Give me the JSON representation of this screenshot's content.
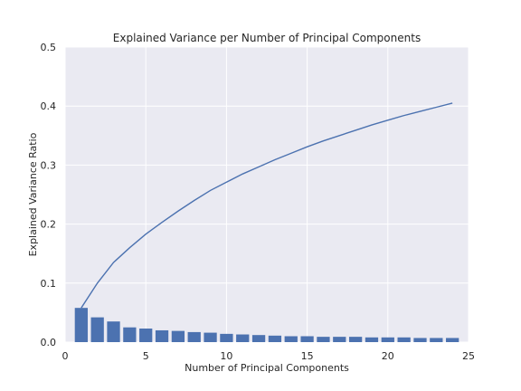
{
  "chart_data": {
    "type": "bar",
    "title": "Explained Variance per Number of Principal Components",
    "xlabel": "Number of Principal Components",
    "ylabel": "Explained Variance Ratio",
    "xlim": [
      0,
      25
    ],
    "ylim": [
      0,
      0.5
    ],
    "x_ticks": [
      0,
      5,
      10,
      15,
      20,
      25
    ],
    "y_ticks": [
      0.0,
      0.1,
      0.2,
      0.3,
      0.4,
      0.5
    ],
    "x_tick_labels": [
      "0",
      "5",
      "10",
      "15",
      "20",
      "25"
    ],
    "y_tick_labels": [
      "0.0",
      "0.1",
      "0.2",
      "0.3",
      "0.4",
      "0.5"
    ],
    "grid": true,
    "background_color": "#eaeaf2",
    "series": [
      {
        "type": "bar",
        "color": "#4c72b0",
        "x": [
          1,
          2,
          3,
          4,
          5,
          6,
          7,
          8,
          9,
          10,
          11,
          12,
          13,
          14,
          15,
          16,
          17,
          18,
          19,
          20,
          21,
          22,
          23,
          24
        ],
        "values": [
          0.058,
          0.042,
          0.035,
          0.025,
          0.023,
          0.02,
          0.019,
          0.017,
          0.016,
          0.014,
          0.013,
          0.012,
          0.011,
          0.01,
          0.01,
          0.009,
          0.009,
          0.009,
          0.008,
          0.008,
          0.008,
          0.007,
          0.007,
          0.007
        ]
      },
      {
        "type": "line",
        "color": "#4c72b0",
        "x": [
          1,
          2,
          3,
          4,
          5,
          6,
          7,
          8,
          9,
          10,
          11,
          12,
          13,
          14,
          15,
          16,
          17,
          18,
          19,
          20,
          21,
          22,
          23,
          24
        ],
        "values": [
          0.058,
          0.1,
          0.135,
          0.16,
          0.183,
          0.203,
          0.222,
          0.24,
          0.257,
          0.271,
          0.285,
          0.297,
          0.309,
          0.32,
          0.331,
          0.341,
          0.35,
          0.359,
          0.368,
          0.376,
          0.384,
          0.391,
          0.398,
          0.405
        ]
      }
    ]
  }
}
